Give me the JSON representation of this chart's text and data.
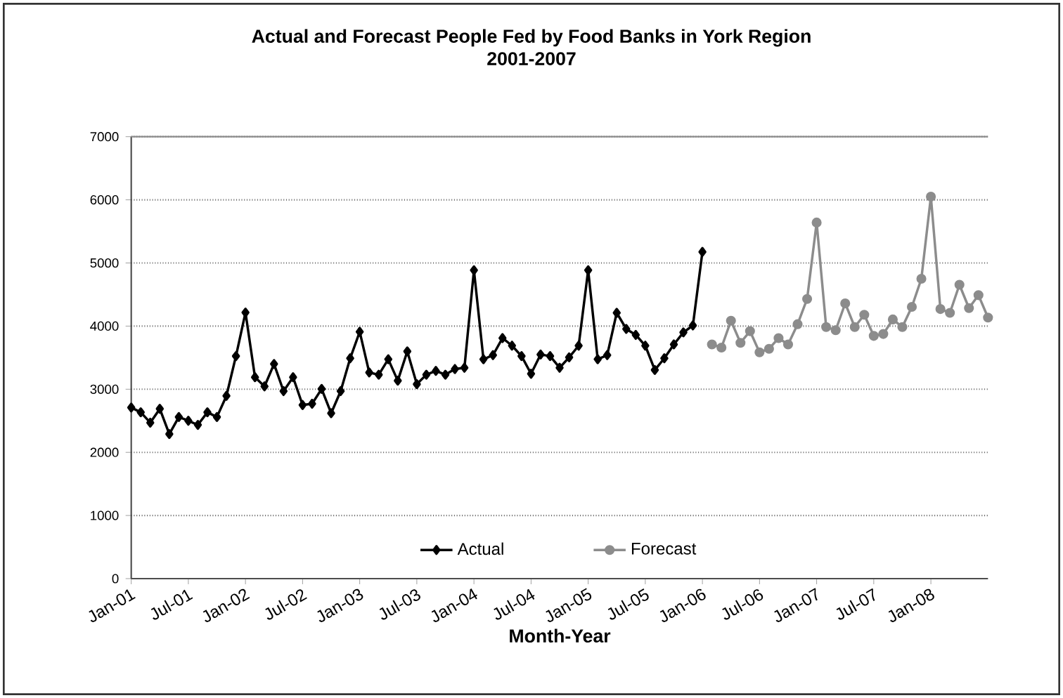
{
  "chart_data": {
    "type": "line",
    "title": "Actual and Forecast People Fed by Food Banks in York Region",
    "subtitle": "2001-2007",
    "xlabel": "Month-Year",
    "categories": [
      "Jan-01",
      null,
      null,
      null,
      null,
      null,
      "Jul-01",
      null,
      null,
      null,
      null,
      null,
      "Jan-02",
      null,
      null,
      null,
      null,
      null,
      "Jul-02",
      null,
      null,
      null,
      null,
      null,
      "Jan-03",
      null,
      null,
      null,
      null,
      null,
      "Jul-03",
      null,
      null,
      null,
      null,
      null,
      "Jan-04",
      null,
      null,
      null,
      null,
      null,
      "Jul-04",
      null,
      null,
      null,
      null,
      null,
      "Jan-05",
      null,
      null,
      null,
      null,
      null,
      "Jul-05",
      null,
      null,
      null,
      null,
      null,
      "Jan-06",
      null,
      null,
      null,
      null,
      null,
      "Jul-06",
      null,
      null,
      null,
      null,
      null,
      "Jan-07",
      null,
      null,
      null,
      null,
      null,
      "Jul-07",
      null,
      null,
      null,
      null,
      null,
      "Jan-08",
      null,
      null,
      null,
      null,
      null,
      null
    ],
    "series": [
      {
        "name": "Actual",
        "color": "#000000",
        "marker": "diamond",
        "values": [
          2710,
          2635,
          2470,
          2690,
          2290,
          2560,
          2500,
          2435,
          2635,
          2560,
          2895,
          3525,
          4215,
          3190,
          3045,
          3400,
          2970,
          3190,
          2750,
          2770,
          3005,
          2620,
          2970,
          3490,
          3910,
          3265,
          3230,
          3475,
          3135,
          3600,
          3080,
          3230,
          3290,
          3230,
          3320,
          3340,
          4885,
          3475,
          3540,
          3810,
          3690,
          3525,
          3245,
          3550,
          3525,
          3340,
          3505,
          3690,
          4885,
          3475,
          3540,
          4210,
          3955,
          3860,
          3690,
          3305,
          3490,
          3710,
          3900,
          4010,
          5175,
          null,
          null,
          null,
          null,
          null,
          null,
          null,
          null,
          null,
          null,
          null,
          null,
          null,
          null,
          null,
          null,
          null,
          null,
          null,
          null,
          null,
          null,
          null,
          null,
          null,
          null,
          null,
          null,
          null,
          null
        ]
      },
      {
        "name": "Forecast",
        "color": "#8c8c8c",
        "marker": "circle",
        "values": [
          null,
          null,
          null,
          null,
          null,
          null,
          null,
          null,
          null,
          null,
          null,
          null,
          null,
          null,
          null,
          null,
          null,
          null,
          null,
          null,
          null,
          null,
          null,
          null,
          null,
          null,
          null,
          null,
          null,
          null,
          null,
          null,
          null,
          null,
          null,
          null,
          null,
          null,
          null,
          null,
          null,
          null,
          null,
          null,
          null,
          null,
          null,
          null,
          null,
          null,
          null,
          null,
          null,
          null,
          null,
          null,
          null,
          null,
          null,
          null,
          null,
          3710,
          3660,
          4085,
          3735,
          3920,
          3585,
          3640,
          3810,
          3710,
          4030,
          4430,
          5640,
          3985,
          3935,
          4360,
          3985,
          4180,
          3845,
          3875,
          4105,
          3985,
          4305,
          4750,
          6050,
          4270,
          4210,
          4655,
          4285,
          4490,
          4135
        ]
      }
    ],
    "ylim": [
      0,
      7000
    ],
    "yticks": [
      0,
      1000,
      2000,
      3000,
      4000,
      5000,
      6000,
      7000
    ],
    "grid": "y",
    "legend": "bottom",
    "line_style": "solid"
  }
}
